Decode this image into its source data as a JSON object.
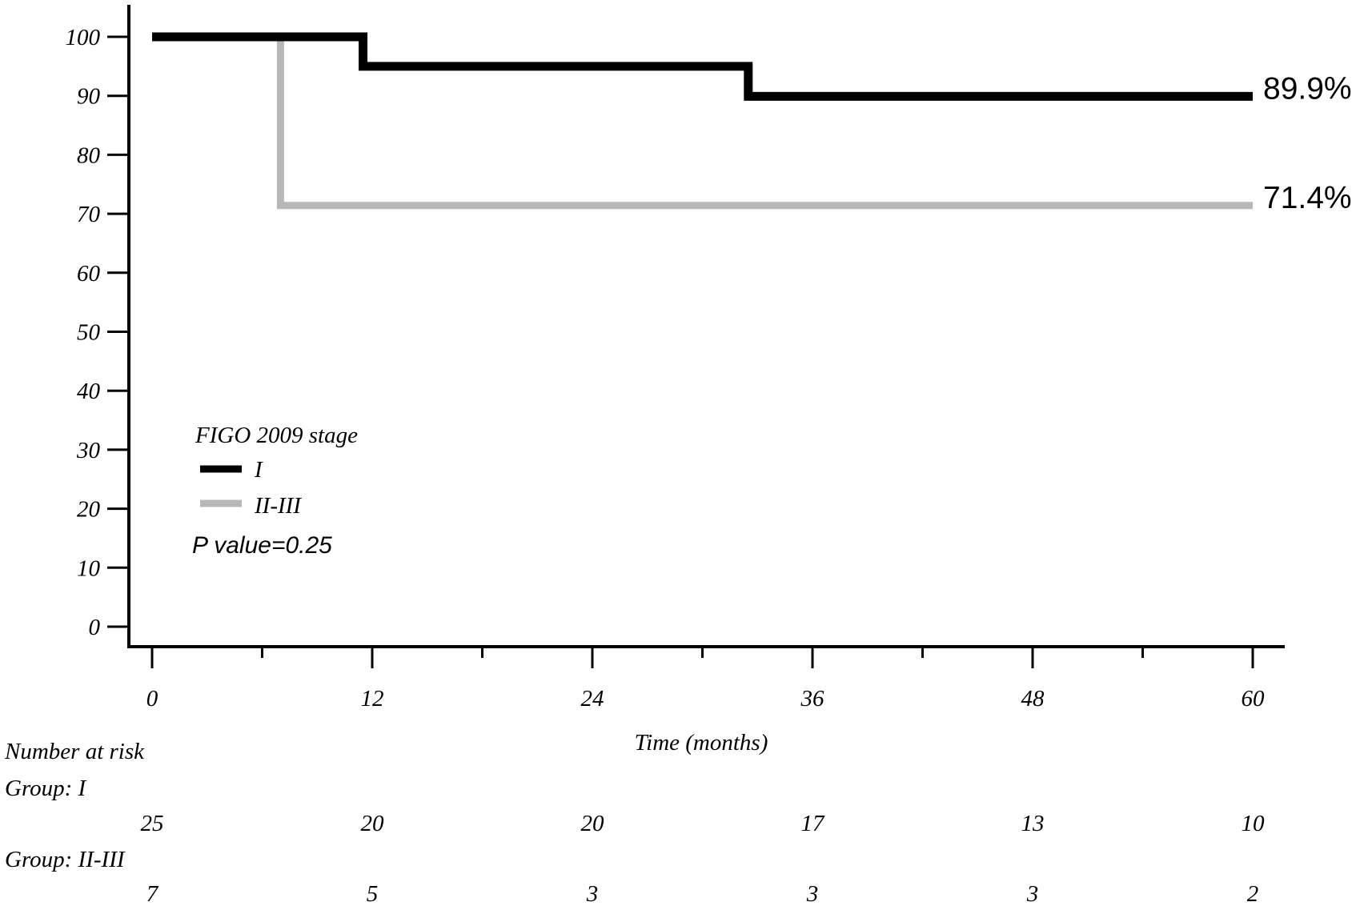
{
  "chart_data": {
    "type": "line",
    "step": true,
    "xlabel": "Time (months)",
    "ylabel": "",
    "xlim": [
      0,
      60
    ],
    "ylim": [
      0,
      100
    ],
    "x_ticks": [
      0,
      12,
      24,
      36,
      48,
      60
    ],
    "y_ticks": [
      0,
      10,
      20,
      30,
      40,
      50,
      60,
      70,
      80,
      90,
      100
    ],
    "grid": false,
    "legend": {
      "title": "FIGO 2009 stage",
      "position": "lower-left"
    },
    "annotation": "P value=0.25",
    "series": [
      {
        "name": "I",
        "color": "#000000",
        "x": [
          0,
          11.5,
          32.5,
          60
        ],
        "y": [
          100,
          95,
          89.9,
          89.9
        ],
        "end_label": "89.9%"
      },
      {
        "name": "II-III",
        "color": "#b8b8b8",
        "x": [
          0,
          7,
          60
        ],
        "y": [
          100,
          71.4,
          71.4
        ],
        "end_label": "71.4%"
      }
    ],
    "risk_table": {
      "title": "Number at risk",
      "times": [
        0,
        12,
        24,
        36,
        48,
        60
      ],
      "groups": [
        {
          "label": "Group: I",
          "counts": [
            "25",
            "20",
            "20",
            "17",
            "13",
            "10"
          ]
        },
        {
          "label": "Group: II-III",
          "counts": [
            "7",
            "5",
            "3",
            "3",
            "3",
            "2"
          ]
        }
      ]
    }
  }
}
